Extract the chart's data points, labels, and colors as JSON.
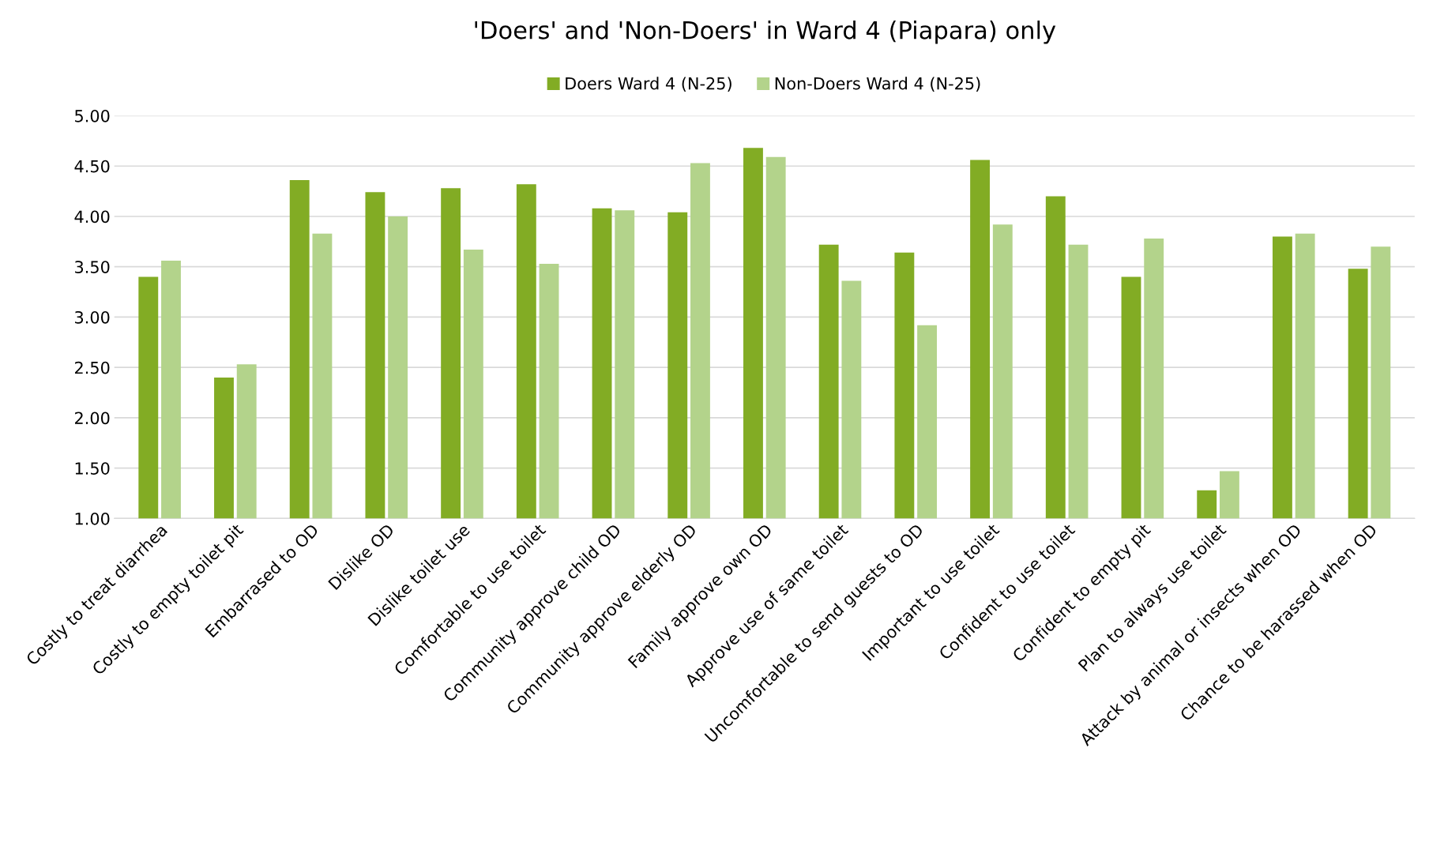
{
  "chart_data": {
    "type": "bar",
    "title": "'Doers' and 'Non-Doers' in Ward 4 (Piapara) only",
    "categories": [
      "Costly to treat diarrhea",
      "Costly to empty toilet pit",
      "Embarrased to OD",
      "Dislike OD",
      "Dislike toilet use",
      "Comfortable to use toilet",
      "Community approve child OD",
      "Community approve elderly OD",
      "Family approve own OD",
      "Approve use of same toilet",
      "Uncomfortable to send guests to OD",
      "Important to use toilet",
      "Confident to use toilet",
      "Confident to empty pit",
      "Plan to always use toilet",
      "Attack by animal or insects when OD",
      "Chance to be harassed when OD"
    ],
    "series": [
      {
        "name": "Doers Ward 4 (N-25)",
        "color": "#82ac24",
        "values": [
          3.4,
          2.4,
          4.36,
          4.24,
          4.28,
          4.32,
          4.08,
          4.04,
          4.68,
          3.72,
          3.64,
          4.56,
          4.2,
          3.4,
          1.28,
          3.8,
          3.48
        ]
      },
      {
        "name": "Non-Doers Ward 4 (N-25)",
        "color": "#b3d38b",
        "values": [
          3.56,
          2.53,
          3.83,
          4.0,
          3.67,
          3.53,
          4.06,
          4.53,
          4.59,
          3.36,
          2.92,
          3.92,
          3.72,
          3.78,
          1.47,
          3.83,
          3.7
        ]
      }
    ],
    "ylim": [
      1.0,
      5.0
    ],
    "yticks": [
      {
        "value": 1.0,
        "label": "1.00"
      },
      {
        "value": 1.5,
        "label": "1.50"
      },
      {
        "value": 2.0,
        "label": "2.00"
      },
      {
        "value": 2.5,
        "label": "2.50"
      },
      {
        "value": 3.0,
        "label": "3.00"
      },
      {
        "value": 3.5,
        "label": "3.50"
      },
      {
        "value": 4.0,
        "label": "4.00"
      },
      {
        "value": 4.5,
        "label": "4.50"
      },
      {
        "value": 5.0,
        "label": "5.00"
      }
    ],
    "grid": "y",
    "legend": "top"
  }
}
